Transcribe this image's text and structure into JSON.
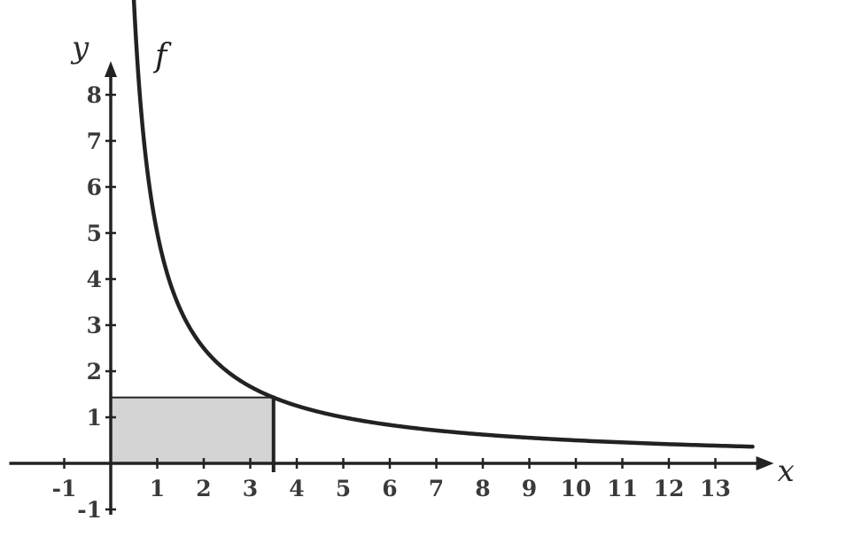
{
  "chart_data": {
    "type": "line",
    "function_label": "f",
    "xlabel": "x",
    "ylabel": "y",
    "xlim": [
      -1,
      13.8
    ],
    "ylim": [
      -1,
      8.5
    ],
    "x_ticks": [
      -1,
      1,
      2,
      3,
      4,
      5,
      6,
      7,
      8,
      9,
      10,
      11,
      12,
      13
    ],
    "y_ticks": [
      -1,
      1,
      2,
      3,
      4,
      5,
      6,
      7,
      8
    ],
    "grid": false,
    "series": [
      {
        "name": "f",
        "formula": "y = 5/x",
        "x_range": [
          0.47,
          13.8
        ]
      }
    ],
    "shaded_rectangle": {
      "x": [
        0,
        3.5
      ],
      "y": [
        0,
        1.43
      ]
    },
    "colors": {
      "curve": "#222222",
      "axes": "#222222",
      "rectangle_fill": "#d4d4d4",
      "rectangle_stroke": "#222222"
    }
  }
}
